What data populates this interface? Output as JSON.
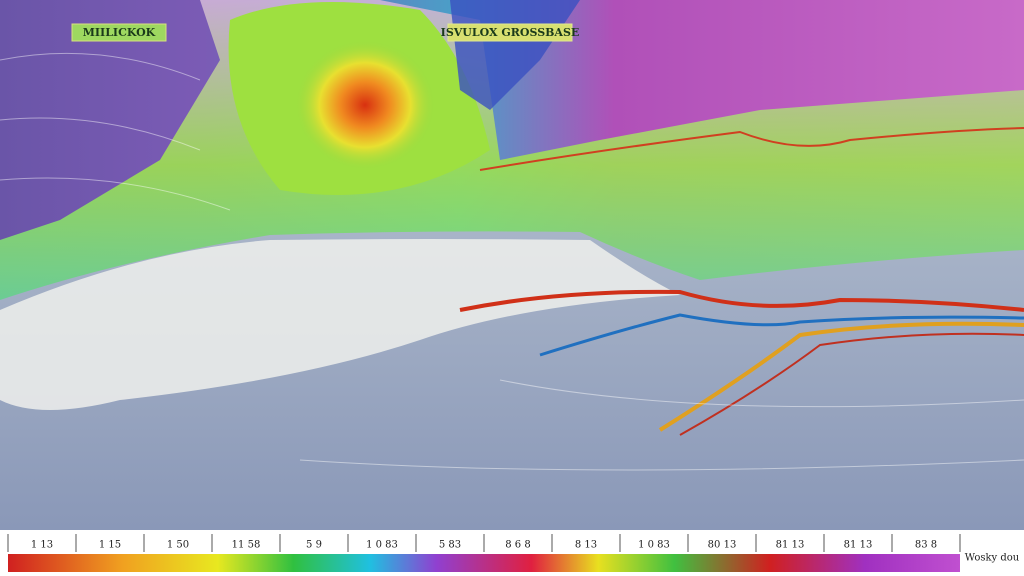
{
  "map": {
    "labels": [
      "MIILICKOK",
      "ISVULOX GROSSBASE"
    ],
    "scale": {
      "ticks": [
        "1 13",
        "1 15",
        "1 50",
        "11 58",
        "5 9",
        "1 0 83",
        "5 83",
        "8 6 8",
        "8 13",
        "1 0 83",
        "80 13",
        "81 13",
        "81 13",
        "83 8"
      ],
      "unit": "Wosky dou"
    }
  }
}
